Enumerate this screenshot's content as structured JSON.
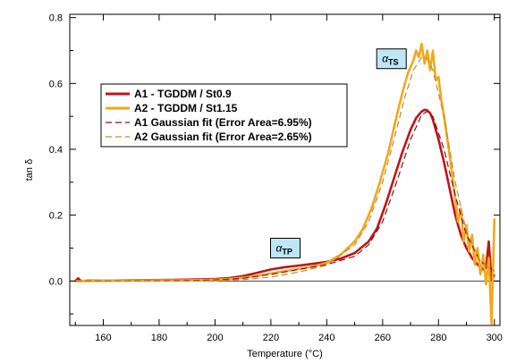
{
  "chart_data": {
    "type": "line",
    "xlabel": "Temperature (°C)",
    "ylabel": "tan δ",
    "xlim": [
      148,
      302
    ],
    "ylim": [
      -0.135,
      0.81
    ],
    "x_ticks": [
      160,
      180,
      200,
      220,
      240,
      260,
      280,
      300
    ],
    "x_tick_labels": [
      "160",
      "180",
      "200",
      "220",
      "240",
      "260",
      "280",
      "300"
    ],
    "y_ticks": [
      0.0,
      0.2,
      0.4,
      0.6,
      0.8
    ],
    "y_tick_labels": [
      "0.0",
      "0.2",
      "0.4",
      "0.6",
      "0.8"
    ],
    "grid": false,
    "legend_position": "upper-left",
    "series": [
      {
        "name": "A1 - TGDDM / St0.9",
        "style": "solid",
        "color": "#c0141c",
        "x": [
          150,
          151,
          152,
          155,
          160,
          170,
          180,
          190,
          200,
          205,
          210,
          215,
          220,
          225,
          230,
          235,
          240,
          245,
          250,
          255,
          258,
          261,
          264,
          267,
          270,
          272,
          274,
          275,
          276,
          277,
          278,
          280,
          282,
          284,
          286,
          288,
          290,
          292,
          294,
          296,
          297,
          298,
          299,
          300
        ],
        "y": [
          0.0,
          0.008,
          0.0,
          0.001,
          0.001,
          0.002,
          0.003,
          0.004,
          0.006,
          0.009,
          0.015,
          0.025,
          0.035,
          0.042,
          0.047,
          0.052,
          0.058,
          0.068,
          0.085,
          0.12,
          0.16,
          0.23,
          0.31,
          0.39,
          0.46,
          0.495,
          0.515,
          0.52,
          0.518,
          0.51,
          0.49,
          0.43,
          0.36,
          0.28,
          0.2,
          0.14,
          0.1,
          0.07,
          0.05,
          0.035,
          0.04,
          0.12,
          0.0,
          0.02
        ]
      },
      {
        "name": "A2 - TGDDM / St1.15",
        "style": "solid",
        "color": "#f2a81d",
        "x": [
          150,
          155,
          160,
          170,
          180,
          190,
          200,
          205,
          210,
          215,
          220,
          225,
          230,
          235,
          240,
          245,
          250,
          253,
          256,
          259,
          262,
          265,
          267,
          269,
          271,
          272,
          273,
          274,
          275,
          276,
          277,
          278,
          279,
          280,
          281,
          282,
          284,
          286,
          287,
          288,
          289,
          290,
          291,
          292,
          293,
          294,
          295,
          296,
          297,
          298,
          299,
          300
        ],
        "y": [
          0.0,
          0.0,
          0.001,
          0.001,
          0.002,
          0.002,
          0.004,
          0.006,
          0.01,
          0.016,
          0.023,
          0.03,
          0.037,
          0.044,
          0.055,
          0.08,
          0.12,
          0.16,
          0.22,
          0.3,
          0.39,
          0.5,
          0.57,
          0.63,
          0.67,
          0.7,
          0.68,
          0.72,
          0.66,
          0.7,
          0.64,
          0.7,
          0.61,
          0.62,
          0.55,
          0.5,
          0.38,
          0.25,
          0.18,
          0.22,
          0.12,
          0.17,
          0.09,
          0.14,
          0.05,
          0.1,
          0.02,
          0.08,
          -0.01,
          0.07,
          -0.13,
          0.19
        ]
      },
      {
        "name": "A1 Gaussian fit (Error Area=6.95%)",
        "style": "dashed",
        "color": "#8b0f15",
        "x": [
          150,
          170,
          190,
          200,
          210,
          220,
          230,
          240,
          250,
          255,
          260,
          265,
          270,
          274,
          276,
          278,
          282,
          286,
          290,
          295,
          300
        ],
        "y": [
          0.0,
          0.0,
          0.001,
          0.003,
          0.008,
          0.02,
          0.035,
          0.05,
          0.075,
          0.11,
          0.18,
          0.3,
          0.43,
          0.505,
          0.515,
          0.5,
          0.4,
          0.26,
          0.14,
          0.06,
          0.03
        ]
      },
      {
        "name": "A2 Gaussian fit (Error Area=2.65%)",
        "style": "dashed",
        "color": "#c8872a",
        "x": [
          150,
          170,
          190,
          200,
          210,
          220,
          230,
          240,
          250,
          255,
          260,
          265,
          268,
          271,
          274,
          276,
          278,
          282,
          286,
          290,
          295,
          300
        ],
        "y": [
          0.0,
          0.0,
          0.0,
          0.001,
          0.004,
          0.012,
          0.027,
          0.048,
          0.11,
          0.18,
          0.3,
          0.46,
          0.56,
          0.64,
          0.68,
          0.675,
          0.64,
          0.5,
          0.3,
          0.15,
          0.06,
          0.03
        ]
      }
    ],
    "annotations": [
      {
        "symbol": "α",
        "subscript": "TS",
        "x": 263,
        "y": 0.675
      },
      {
        "symbol": "α",
        "subscript": "TP",
        "x": 225,
        "y": 0.1
      }
    ]
  }
}
